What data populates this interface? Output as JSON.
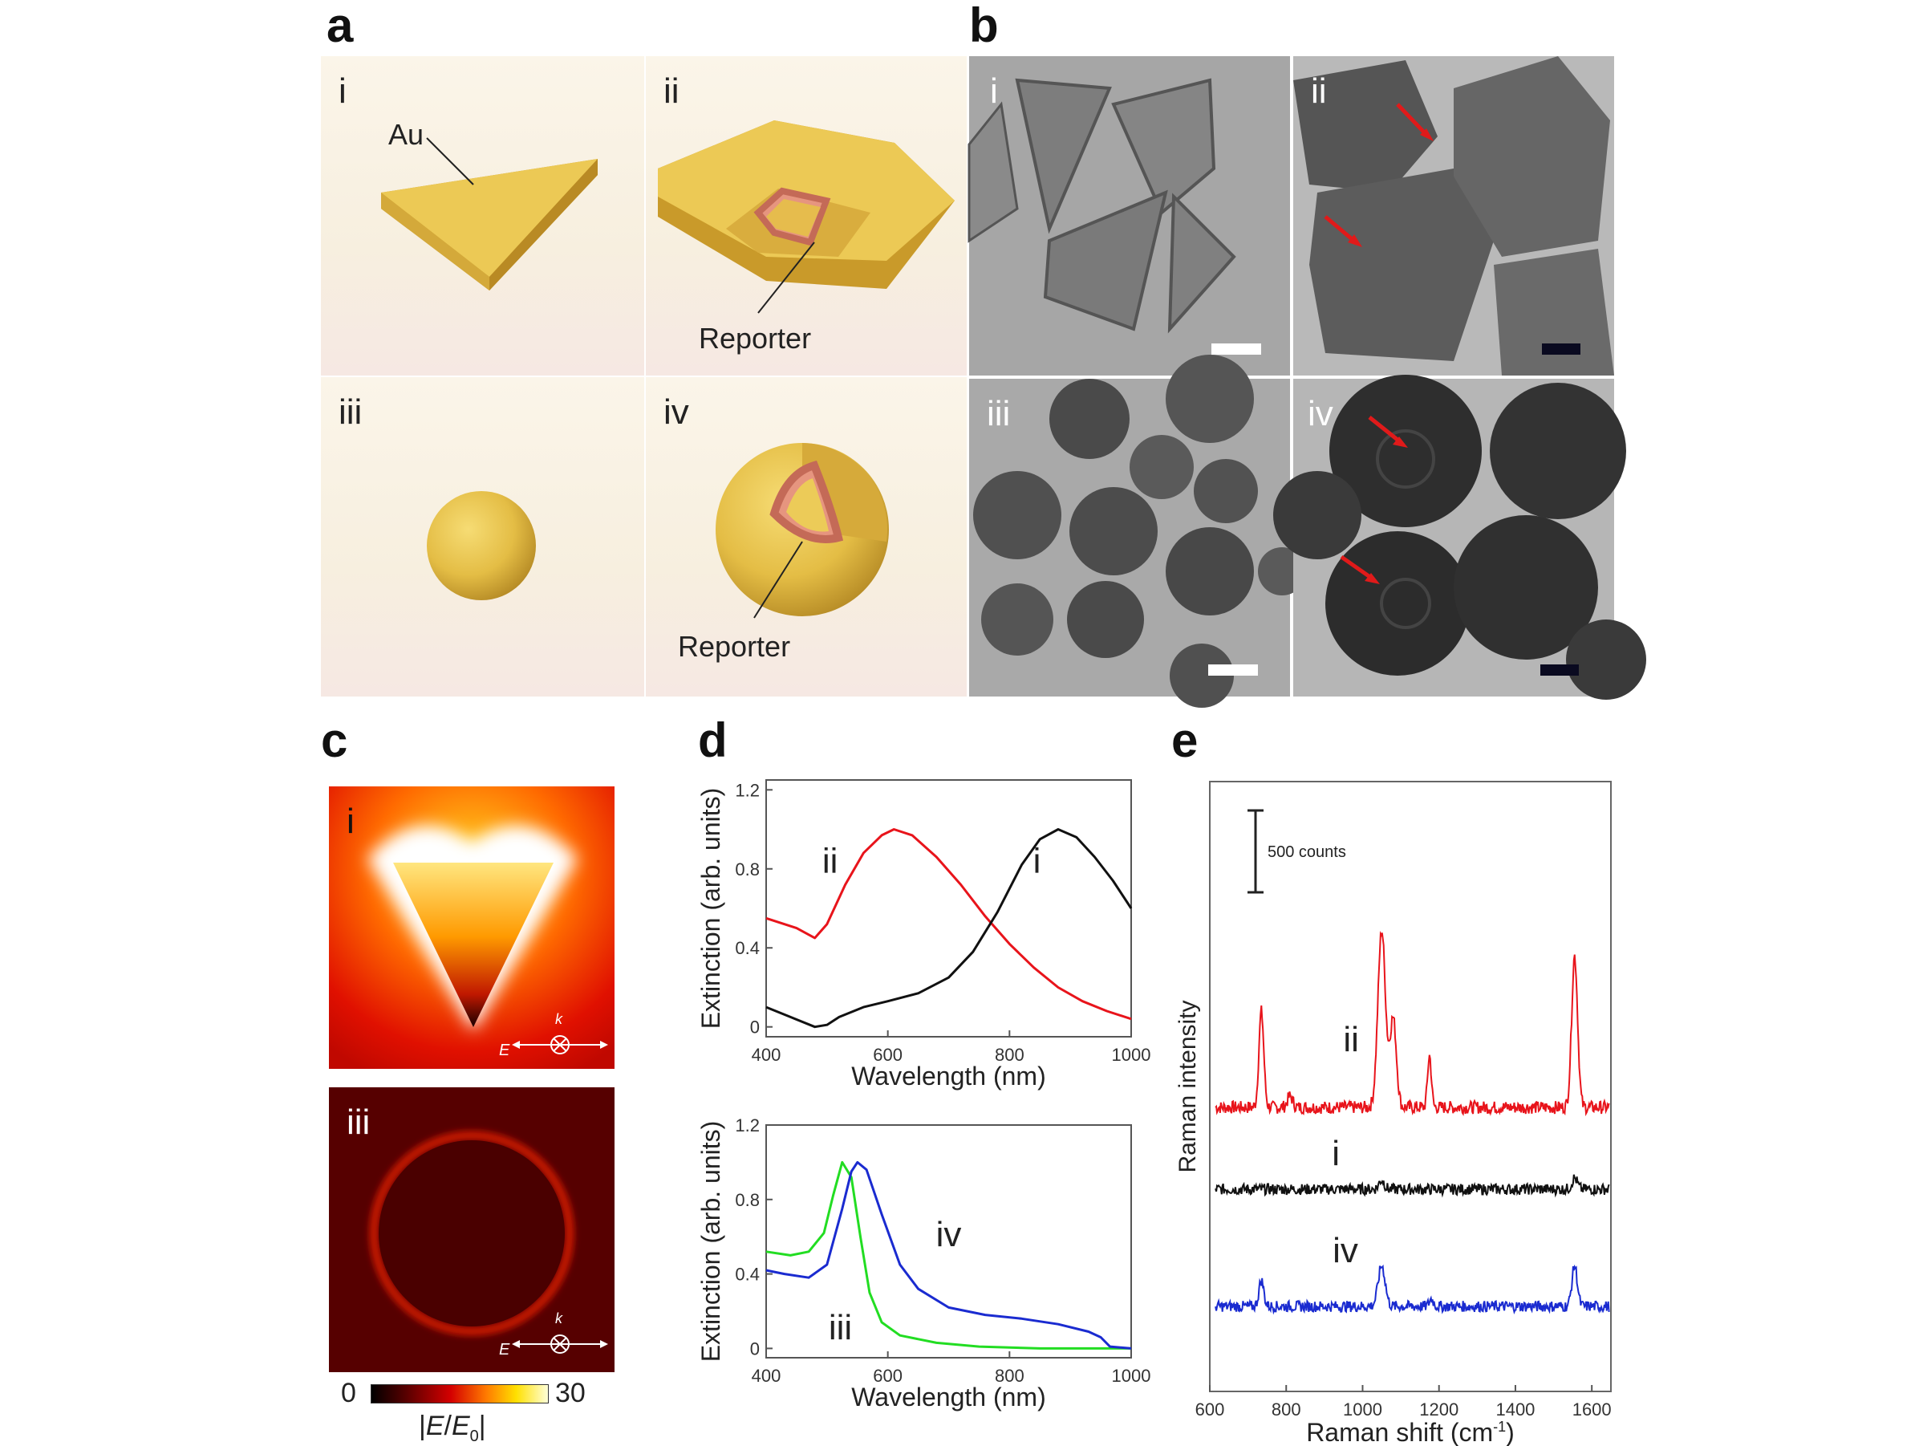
{
  "panels": {
    "a": {
      "label": "a",
      "cells": [
        {
          "id": "i",
          "text": "Au"
        },
        {
          "id": "ii",
          "text": "Reporter"
        },
        {
          "id": "iii"
        },
        {
          "id": "iv",
          "text": "Reporter"
        }
      ]
    },
    "b": {
      "label": "b",
      "cells": [
        "i",
        "ii",
        "iii",
        "iv"
      ]
    },
    "c": {
      "label": "c",
      "maps": [
        "i",
        "iii"
      ],
      "polarization": {
        "k": "k",
        "E": "E"
      },
      "colorbar": {
        "min": "0",
        "max": "30",
        "label_pre": "|",
        "E": "E",
        "sep": "/",
        "E0": "E",
        "sub0": "0",
        "label_post": "|"
      }
    },
    "d": {
      "label": "d"
    },
    "e": {
      "label": "e"
    }
  },
  "colors": {
    "gold": "#e6c24a",
    "reporter": "#e08a78",
    "red": "#e8141b",
    "black": "#111111",
    "green": "#22dd22",
    "blue": "#1a2bd0",
    "arrow": "#e01a1a"
  },
  "chart_data": [
    {
      "id": "d-top",
      "type": "line",
      "xlabel": "Wavelength (nm)",
      "ylabel": "Extinction (arb. units)",
      "xlim": [
        400,
        1000
      ],
      "ylim": [
        -0.05,
        1.25
      ],
      "xticks": [
        400,
        600,
        800,
        1000
      ],
      "yticks": [
        0,
        0.4,
        0.8,
        1.2
      ],
      "ytick_labels": [
        "0",
        "0.4",
        "0.8",
        "1.2"
      ],
      "series": [
        {
          "name": "ii",
          "color": "#e8141b",
          "points": [
            [
              400,
              0.55
            ],
            [
              450,
              0.5
            ],
            [
              480,
              0.45
            ],
            [
              500,
              0.52
            ],
            [
              530,
              0.72
            ],
            [
              560,
              0.88
            ],
            [
              590,
              0.97
            ],
            [
              610,
              1.0
            ],
            [
              640,
              0.97
            ],
            [
              680,
              0.86
            ],
            [
              720,
              0.72
            ],
            [
              760,
              0.56
            ],
            [
              800,
              0.42
            ],
            [
              840,
              0.3
            ],
            [
              880,
              0.2
            ],
            [
              920,
              0.13
            ],
            [
              960,
              0.08
            ],
            [
              1000,
              0.04
            ]
          ]
        },
        {
          "name": "i",
          "color": "#111111",
          "points": [
            [
              400,
              0.1
            ],
            [
              440,
              0.05
            ],
            [
              480,
              0.0
            ],
            [
              500,
              0.01
            ],
            [
              520,
              0.05
            ],
            [
              560,
              0.1
            ],
            [
              600,
              0.13
            ],
            [
              650,
              0.17
            ],
            [
              700,
              0.25
            ],
            [
              740,
              0.38
            ],
            [
              780,
              0.58
            ],
            [
              820,
              0.82
            ],
            [
              850,
              0.95
            ],
            [
              880,
              1.0
            ],
            [
              910,
              0.96
            ],
            [
              940,
              0.86
            ],
            [
              970,
              0.74
            ],
            [
              1000,
              0.6
            ]
          ]
        }
      ]
    },
    {
      "id": "d-bottom",
      "type": "line",
      "xlabel": "Wavelength (nm)",
      "ylabel": "Extinction (arb. units)",
      "xlim": [
        400,
        1000
      ],
      "ylim": [
        -0.05,
        1.2
      ],
      "xticks": [
        400,
        600,
        800,
        1000
      ],
      "yticks": [
        0,
        0.4,
        0.8,
        1.2
      ],
      "ytick_labels": [
        "0",
        "0.4",
        "0.8",
        "1.2"
      ],
      "series": [
        {
          "name": "iii",
          "color": "#22dd22",
          "points": [
            [
              400,
              0.52
            ],
            [
              440,
              0.5
            ],
            [
              470,
              0.52
            ],
            [
              495,
              0.62
            ],
            [
              510,
              0.82
            ],
            [
              525,
              1.0
            ],
            [
              540,
              0.92
            ],
            [
              555,
              0.6
            ],
            [
              570,
              0.3
            ],
            [
              590,
              0.14
            ],
            [
              620,
              0.07
            ],
            [
              680,
              0.03
            ],
            [
              750,
              0.01
            ],
            [
              850,
              0.0
            ],
            [
              1000,
              0.0
            ]
          ]
        },
        {
          "name": "iv",
          "color": "#1a2bd0",
          "points": [
            [
              400,
              0.42
            ],
            [
              430,
              0.4
            ],
            [
              470,
              0.38
            ],
            [
              500,
              0.45
            ],
            [
              525,
              0.75
            ],
            [
              540,
              0.95
            ],
            [
              550,
              1.0
            ],
            [
              565,
              0.96
            ],
            [
              590,
              0.72
            ],
            [
              620,
              0.45
            ],
            [
              650,
              0.32
            ],
            [
              700,
              0.22
            ],
            [
              760,
              0.18
            ],
            [
              820,
              0.16
            ],
            [
              880,
              0.13
            ],
            [
              930,
              0.09
            ],
            [
              950,
              0.06
            ],
            [
              965,
              0.01
            ],
            [
              1000,
              0.0
            ]
          ]
        }
      ]
    },
    {
      "id": "e",
      "type": "line",
      "xlabel": "Raman shift (cm",
      "xlabel_sup": "-1",
      "xlabel_end": ")",
      "ylabel": "Raman intensity",
      "xlim": [
        600,
        1650
      ],
      "xticks": [
        600,
        800,
        1000,
        1200,
        1400,
        1600
      ],
      "scale_bar": "500 counts",
      "series": [
        {
          "name": "ii",
          "color": "#e8141b",
          "baseline": 1.0,
          "peaks": [
            [
              735,
              2.6,
              9
            ],
            [
              810,
              0.3,
              10
            ],
            [
              1050,
              4.8,
              14
            ],
            [
              1080,
              2.4,
              12
            ],
            [
              1175,
              1.4,
              7
            ],
            [
              1555,
              4.1,
              11
            ]
          ]
        },
        {
          "name": "i",
          "color": "#111111",
          "baseline": 0.0,
          "peaks": [
            [
              1050,
              0.25,
              10
            ],
            [
              1555,
              0.3,
              10
            ]
          ]
        },
        {
          "name": "iv",
          "color": "#1a2bd0",
          "baseline": -1.5,
          "peaks": [
            [
              735,
              0.7,
              9
            ],
            [
              1050,
              1.1,
              13
            ],
            [
              1180,
              0.2,
              8
            ],
            [
              1555,
              1.1,
              10
            ]
          ]
        }
      ]
    }
  ]
}
